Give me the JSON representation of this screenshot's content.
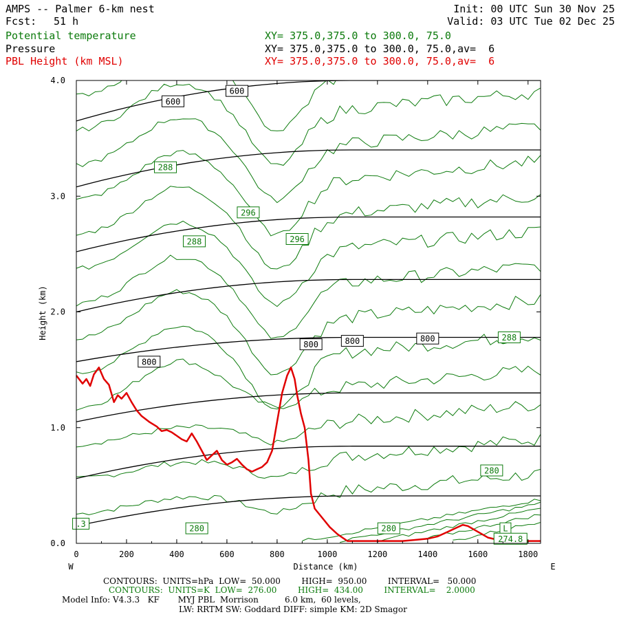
{
  "header": {
    "title": "AMPS -- Palmer 6-km nest",
    "fcst_label": "Fcst:",
    "fcst_value": "51 h",
    "init": "Init: 00 UTC Sun 30 Nov 25",
    "valid": "Valid: 03 UTC Tue 02 Dec 25",
    "var1": "Potential temperature",
    "var2": "Pressure",
    "var3": "PBL Height (km MSL)",
    "xy1": "XY= 375.0,375.0 to 300.0, 75.0",
    "xy2": "XY= 375.0,375.0 to 300.0, 75.0,av=  6",
    "xy3": "XY= 375.0,375.0 to 300.0, 75.0,av=  6"
  },
  "footer": {
    "line1": "CONTOURS:  UNITS=hPa  LOW=  50.000        HIGH=  950.00        INTERVAL=   50.000",
    "line2": "CONTOURS:  UNITS=K  LOW=  276.00        HIGH=  434.00        INTERVAL=    2.0000",
    "line3": "Model Info: V4.3.3   KF       MYJ PBL  Morrison          6.0 km,  60 levels,",
    "line4": "LW: RRTM SW: Goddard DIFF: simple KM: 2D Smagor"
  },
  "colors": {
    "theta": "#0b7a0b",
    "pressure": "#000000",
    "pbl": "#e00000"
  },
  "chart_data": {
    "type": "line",
    "xlabel": "Distance (km)",
    "ylabel": "Height (km)",
    "x_left_label": "W",
    "x_right_label": "E",
    "xlim": [
      0,
      1850
    ],
    "ylim": [
      0,
      4
    ],
    "xticks": [
      0,
      200,
      400,
      600,
      800,
      1000,
      1200,
      1400,
      1600,
      1800
    ],
    "yticks": [
      0.0,
      1.0,
      2.0,
      3.0,
      4.0
    ],
    "ytick_labels": [
      "0.0",
      "1.0",
      "2.0",
      "3.0",
      "4.0"
    ],
    "pressure_contours": [
      {
        "y_start": 0.15,
        "y_end": 0.41
      },
      {
        "y_start": 0.56,
        "y_end": 0.84
      },
      {
        "y_start": 1.05,
        "y_end": 1.3
      },
      {
        "y_start": 1.57,
        "y_end": 1.78
      },
      {
        "y_start": 2.0,
        "y_end": 2.28
      },
      {
        "y_start": 2.52,
        "y_end": 2.82
      },
      {
        "y_start": 3.08,
        "y_end": 3.4
      },
      {
        "y_start": 3.65,
        "y_end": 4.0
      }
    ],
    "pressure_labels": [
      {
        "text": "600",
        "x": 385,
        "y": 3.82
      },
      {
        "text": "600",
        "x": 640,
        "y": 3.91
      },
      {
        "text": "800",
        "x": 290,
        "y": 1.57
      },
      {
        "text": "800",
        "x": 935,
        "y": 1.72
      },
      {
        "text": "800",
        "x": 1100,
        "y": 1.75
      },
      {
        "text": "800",
        "x": 1400,
        "y": 1.77
      }
    ],
    "theta_labels": [
      {
        "text": "288",
        "x": 355,
        "y": 3.25
      },
      {
        "text": "296",
        "x": 685,
        "y": 2.86
      },
      {
        "text": "296",
        "x": 880,
        "y": 2.63
      },
      {
        "text": "288",
        "x": 470,
        "y": 2.61
      },
      {
        "text": "288",
        "x": 1725,
        "y": 1.78
      },
      {
        "text": "280",
        "x": 1655,
        "y": 0.63
      },
      {
        "text": "280",
        "x": 480,
        "y": 0.13
      },
      {
        "text": "280",
        "x": 1245,
        "y": 0.13
      },
      {
        "text": "L",
        "x": 1710,
        "y": 0.13
      },
      {
        "text": "274.8",
        "x": 1730,
        "y": 0.04
      },
      {
        "text": ".3",
        "x": 18,
        "y": 0.17
      }
    ],
    "series": [
      {
        "name": "PBL Height (km MSL)",
        "x": [
          0,
          25,
          40,
          55,
          70,
          90,
          110,
          130,
          150,
          165,
          180,
          200,
          220,
          240,
          260,
          290,
          320,
          340,
          360,
          380,
          400,
          420,
          440,
          460,
          480,
          500,
          520,
          540,
          560,
          580,
          600,
          620,
          640,
          660,
          680,
          700,
          720,
          740,
          760,
          780,
          800,
          820,
          840,
          855,
          870,
          880,
          895,
          910,
          925,
          935,
          950,
          980,
          1010,
          1040,
          1060,
          1080,
          1100,
          1150,
          1200,
          1300,
          1350,
          1400,
          1440,
          1480,
          1510,
          1540,
          1560,
          1600,
          1640,
          1680,
          1720,
          1760,
          1800,
          1850
        ],
        "values": [
          1.45,
          1.38,
          1.42,
          1.36,
          1.46,
          1.52,
          1.42,
          1.37,
          1.22,
          1.28,
          1.25,
          1.3,
          1.22,
          1.15,
          1.1,
          1.05,
          1.01,
          0.97,
          0.98,
          0.96,
          0.93,
          0.9,
          0.88,
          0.95,
          0.88,
          0.8,
          0.72,
          0.76,
          0.8,
          0.72,
          0.68,
          0.7,
          0.73,
          0.68,
          0.64,
          0.62,
          0.64,
          0.66,
          0.7,
          0.8,
          1.05,
          1.3,
          1.45,
          1.52,
          1.42,
          1.28,
          1.12,
          1.0,
          0.72,
          0.43,
          0.3,
          0.22,
          0.14,
          0.08,
          0.05,
          0.02,
          0.02,
          0.02,
          0.02,
          0.02,
          0.03,
          0.04,
          0.06,
          0.1,
          0.13,
          0.16,
          0.15,
          0.1,
          0.05,
          0.03,
          0.02,
          0.02,
          0.02,
          0.02
        ]
      }
    ]
  }
}
